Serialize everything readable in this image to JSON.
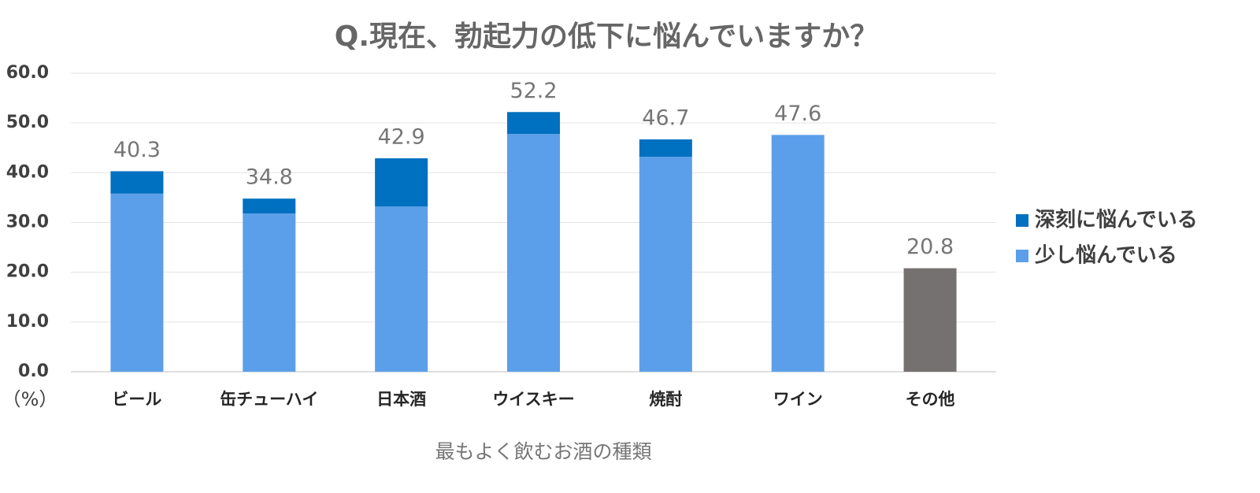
{
  "chart_data": {
    "type": "stacked_bar",
    "title": "Q.現在、勃起力の低下に悩んでいますか？",
    "x_label": "最もよく飲むお酒の種類",
    "y_label": "（%）",
    "categories": [
      "ビール",
      "缶チューハイ",
      "日本酒",
      "ウイスキー",
      "焼酎",
      "ワイン",
      "その他"
    ],
    "series": [
      {
        "name": "深刻に悩んでいる",
        "color": "#0070c0",
        "values": [
          4.5,
          3.0,
          9.7,
          4.4,
          3.5,
          0,
          0
        ]
      },
      {
        "name": "少し悩んでいる",
        "color": "#5b9fea",
        "values": [
          35.8,
          31.8,
          33.2,
          47.8,
          43.2,
          47.6,
          20.8
        ],
        "colors": [
          "#5b9fea",
          "#5b9fea",
          "#5b9fea",
          "#5b9fea",
          "#5b9fea",
          "#5b9fea",
          "#767171"
        ]
      }
    ],
    "totals": [
      40.3,
      34.8,
      42.9,
      52.2,
      46.7,
      47.6,
      20.8
    ],
    "ylim": [
      0,
      60
    ],
    "yticks": [
      {
        "value": 0,
        "label": "0.0"
      },
      {
        "value": 10,
        "label": "10.0"
      },
      {
        "value": 20,
        "label": "20.0"
      },
      {
        "value": 30,
        "label": "30.0"
      },
      {
        "value": 40,
        "label": "40.0"
      },
      {
        "value": 50,
        "label": "50.0"
      },
      {
        "value": 60,
        "label": "60.0"
      }
    ],
    "grid": true,
    "legend": "right"
  }
}
